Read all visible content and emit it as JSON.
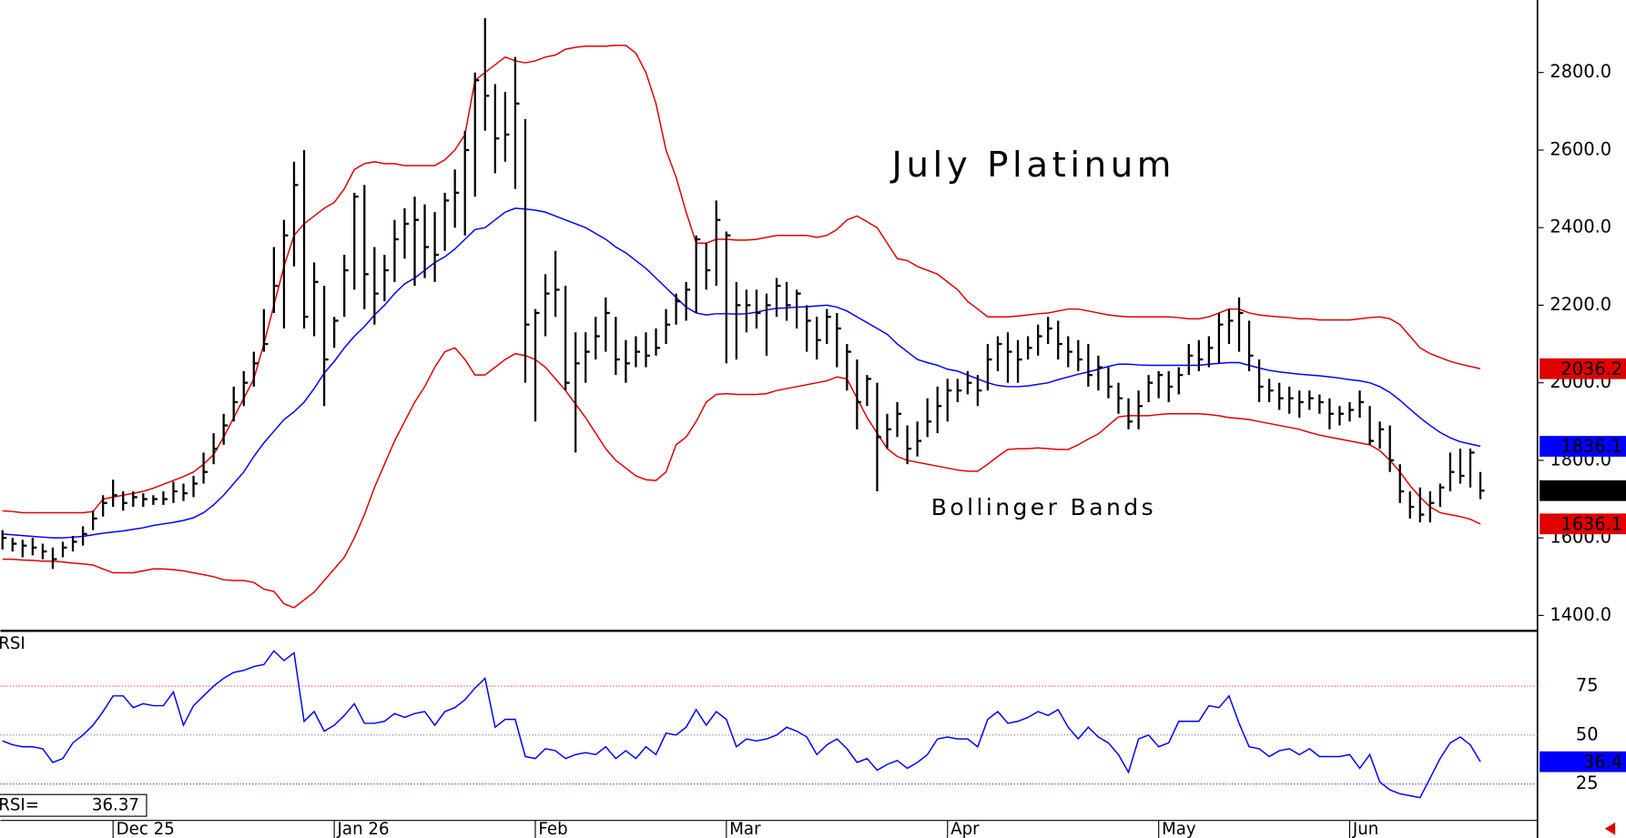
{
  "chart_data": [
    {
      "type": "ohlc",
      "title": "July Platinum",
      "annotation": "Bollinger Bands",
      "annotation_color": "#e00000",
      "color": "#000000",
      "categories": [
        null,
        null,
        null,
        null,
        null,
        null,
        null,
        null,
        null,
        null,
        null,
        "Dec 25",
        null,
        null,
        null,
        null,
        null,
        null,
        null,
        null,
        null,
        null,
        null,
        null,
        null,
        null,
        null,
        null,
        null,
        null,
        null,
        null,
        null,
        "Jan 26",
        null,
        null,
        null,
        null,
        null,
        null,
        null,
        null,
        null,
        null,
        null,
        null,
        null,
        null,
        null,
        null,
        null,
        null,
        null,
        "Feb",
        null,
        null,
        null,
        null,
        null,
        null,
        null,
        null,
        null,
        null,
        null,
        null,
        null,
        null,
        null,
        null,
        null,
        null,
        "Mar",
        null,
        null,
        null,
        null,
        null,
        null,
        null,
        null,
        null,
        null,
        null,
        null,
        null,
        null,
        null,
        null,
        null,
        null,
        null,
        null,
        null,
        "Apr",
        null,
        null,
        null,
        null,
        null,
        null,
        null,
        null,
        null,
        null,
        null,
        null,
        null,
        null,
        null,
        null,
        null,
        null,
        null,
        null,
        "May",
        null,
        null,
        null,
        null,
        null,
        null,
        null,
        null,
        null,
        null,
        null,
        null,
        null,
        null,
        null,
        null,
        null,
        null,
        "Jun",
        null,
        null,
        null,
        null,
        null,
        null,
        null,
        null,
        null,
        null,
        null,
        null,
        null
      ],
      "high": [
        1620,
        1600,
        1595,
        1600,
        1585,
        1575,
        1590,
        1605,
        1630,
        1670,
        1710,
        1750,
        1720,
        1720,
        1715,
        1710,
        1720,
        1745,
        1740,
        1760,
        1820,
        1870,
        1920,
        1990,
        2030,
        2080,
        2190,
        2350,
        2420,
        2570,
        2600,
        2310,
        2250,
        2170,
        2330,
        2490,
        2510,
        2350,
        2330,
        2420,
        2450,
        2480,
        2460,
        2440,
        2490,
        2550,
        2650,
        2800,
        2940,
        2770,
        2750,
        2840,
        2680,
        2190,
        2280,
        2340,
        2250,
        2130,
        2130,
        2170,
        2220,
        2170,
        2110,
        2120,
        2130,
        2140,
        2190,
        2230,
        2260,
        2380,
        2360,
        2470,
        2390,
        2260,
        2240,
        2240,
        2230,
        2270,
        2260,
        2240,
        2200,
        2170,
        2190,
        2180,
        2100,
        2060,
        2020,
        2000,
        1920,
        1950,
        1890,
        1900,
        1960,
        1990,
        2010,
        2010,
        2030,
        2020,
        2100,
        2120,
        2130,
        2110,
        2120,
        2150,
        2170,
        2160,
        2120,
        2110,
        2100,
        2070,
        2040,
        2000,
        1960,
        1980,
        2020,
        2030,
        2030,
        2040,
        2100,
        2110,
        2120,
        2180,
        2190,
        2220,
        2160,
        2060,
        2010,
        2000,
        1990,
        1980,
        1980,
        1970,
        1960,
        1940,
        1950,
        1980,
        1940,
        1900,
        1890,
        1790,
        1720,
        1730,
        1720,
        1740,
        1820,
        1830,
        1830,
        1770
      ],
      "low": [
        1570,
        1565,
        1550,
        1555,
        1545,
        1520,
        1550,
        1565,
        1580,
        1620,
        1655,
        1680,
        1670,
        1680,
        1680,
        1685,
        1685,
        1690,
        1695,
        1705,
        1740,
        1790,
        1840,
        1900,
        1940,
        1990,
        2080,
        2180,
        2140,
        2300,
        2140,
        2120,
        1940,
        2090,
        2170,
        2240,
        2190,
        2150,
        2210,
        2260,
        2320,
        2250,
        2270,
        2260,
        2340,
        2400,
        2380,
        2480,
        2650,
        2540,
        2570,
        2500,
        2000,
        1900,
        2120,
        2170,
        1980,
        1820,
        2000,
        2060,
        2080,
        2020,
        2000,
        2040,
        2040,
        2070,
        2100,
        2150,
        2160,
        2180,
        2240,
        2250,
        2050,
        2060,
        2130,
        2140,
        2070,
        2170,
        2160,
        2140,
        2080,
        2060,
        2100,
        2040,
        1980,
        1880,
        1940,
        1720,
        1830,
        1860,
        1790,
        1810,
        1860,
        1870,
        1900,
        1950,
        1970,
        1940,
        1980,
        2030,
        2000,
        2000,
        2060,
        2070,
        2100,
        2060,
        2040,
        2030,
        1990,
        1980,
        1960,
        1920,
        1880,
        1880,
        1950,
        1960,
        1950,
        1970,
        2020,
        2030,
        2040,
        2050,
        2100,
        2080,
        2030,
        1950,
        1950,
        1930,
        1920,
        1910,
        1930,
        1920,
        1880,
        1890,
        1900,
        1910,
        1840,
        1830,
        1770,
        1690,
        1650,
        1640,
        1640,
        1680,
        1720,
        1740,
        1730,
        1700
      ],
      "close": [
        1600,
        1585,
        1580,
        1575,
        1565,
        1545,
        1575,
        1590,
        1610,
        1650,
        1690,
        1710,
        1690,
        1705,
        1700,
        1700,
        1700,
        1720,
        1715,
        1740,
        1770,
        1830,
        1890,
        1950,
        2000,
        2050,
        2100,
        2250,
        2380,
        2510,
        2170,
        2260,
        2060,
        2160,
        2290,
        2480,
        2280,
        2230,
        2290,
        2370,
        2410,
        2420,
        2350,
        2330,
        2470,
        2490,
        2600,
        2780,
        2740,
        2630,
        2640,
        2720,
        2150,
        2180,
        2230,
        2240,
        2000,
        2050,
        2080,
        2120,
        2180,
        2060,
        2050,
        2080,
        2070,
        2090,
        2150,
        2210,
        2240,
        2370,
        2290,
        2420,
        2380,
        2200,
        2200,
        2180,
        2200,
        2250,
        2200,
        2230,
        2160,
        2110,
        2170,
        2140,
        2080,
        1950,
        2010,
        1860,
        1880,
        1920,
        1830,
        1850,
        1900,
        1940,
        1980,
        1980,
        2000,
        1980,
        2060,
        2100,
        2080,
        2060,
        2090,
        2120,
        2140,
        2100,
        2080,
        2060,
        2020,
        2040,
        1990,
        1960,
        1900,
        1940,
        2000,
        2020,
        1990,
        2020,
        2070,
        2060,
        2090,
        2150,
        2160,
        2180,
        2070,
        1990,
        1980,
        1960,
        1960,
        1950,
        1960,
        1950,
        1920,
        1920,
        1930,
        1950,
        1850,
        1880,
        1800,
        1720,
        1680,
        1660,
        1690,
        1730,
        1770,
        1760,
        1820,
        1721.8
      ],
      "series": [
        {
          "color": "#e00000",
          "values": [
            1670,
            1668,
            1665,
            1665,
            1665,
            1665,
            1665,
            1665,
            1665,
            1668,
            1700,
            1705,
            1710,
            1715,
            1720,
            1728,
            1738,
            1748,
            1758,
            1770,
            1790,
            1815,
            1860,
            1910,
            1960,
            2010,
            2100,
            2200,
            2300,
            2380,
            2410,
            2430,
            2450,
            2465,
            2500,
            2550,
            2565,
            2570,
            2565,
            2565,
            2560,
            2560,
            2560,
            2560,
            2575,
            2600,
            2640,
            2780,
            2800,
            2820,
            2840,
            2830,
            2825,
            2830,
            2840,
            2845,
            2860,
            2865,
            2868,
            2868,
            2868,
            2870,
            2870,
            2850,
            2800,
            2720,
            2600,
            2530,
            2440,
            2360,
            2360,
            2370,
            2370,
            2368,
            2368,
            2370,
            2375,
            2380,
            2380,
            2380,
            2380,
            2375,
            2380,
            2395,
            2420,
            2430,
            2415,
            2400,
            2360,
            2320,
            2315,
            2300,
            2290,
            2280,
            2260,
            2240,
            2210,
            2190,
            2170,
            2170,
            2170,
            2172,
            2175,
            2178,
            2180,
            2185,
            2190,
            2190,
            2185,
            2180,
            2175,
            2172,
            2170,
            2170,
            2170,
            2170,
            2170,
            2168,
            2165,
            2165,
            2170,
            2180,
            2190,
            2190,
            2180,
            2175,
            2172,
            2170,
            2168,
            2165,
            2165,
            2162,
            2162,
            2162,
            2162,
            2165,
            2168,
            2170,
            2165,
            2150,
            2120,
            2090,
            2075,
            2065,
            2055,
            2048,
            2042,
            2036.2
          ]
        },
        {
          "color": "#0000ff",
          "values": [
            1610,
            1608,
            1606,
            1604,
            1602,
            1600,
            1600,
            1602,
            1604,
            1608,
            1612,
            1615,
            1618,
            1622,
            1626,
            1632,
            1636,
            1640,
            1645,
            1652,
            1665,
            1685,
            1710,
            1740,
            1770,
            1810,
            1845,
            1875,
            1905,
            1925,
            1950,
            1985,
            2025,
            2055,
            2090,
            2120,
            2145,
            2175,
            2200,
            2230,
            2255,
            2270,
            2290,
            2310,
            2325,
            2345,
            2370,
            2395,
            2400,
            2420,
            2440,
            2450,
            2448,
            2445,
            2440,
            2430,
            2420,
            2410,
            2400,
            2385,
            2370,
            2350,
            2335,
            2315,
            2295,
            2270,
            2245,
            2220,
            2195,
            2180,
            2175,
            2178,
            2178,
            2177,
            2178,
            2182,
            2188,
            2192,
            2193,
            2195,
            2196,
            2198,
            2200,
            2195,
            2185,
            2170,
            2155,
            2140,
            2125,
            2100,
            2080,
            2060,
            2052,
            2045,
            2035,
            2030,
            2020,
            2010,
            2000,
            1993,
            1990,
            1990,
            1992,
            1996,
            2000,
            2008,
            2015,
            2022,
            2028,
            2035,
            2042,
            2048,
            2048,
            2046,
            2045,
            2045,
            2045,
            2045,
            2045,
            2045,
            2048,
            2050,
            2052,
            2052,
            2045,
            2038,
            2032,
            2028,
            2025,
            2022,
            2020,
            2018,
            2015,
            2012,
            2008,
            2005,
            2000,
            1990,
            1975,
            1955,
            1932,
            1910,
            1890,
            1872,
            1858,
            1848,
            1842,
            1836.1
          ]
        },
        {
          "color": "#e00000",
          "values": [
            1545,
            1545,
            1543,
            1542,
            1540,
            1540,
            1538,
            1535,
            1533,
            1530,
            1520,
            1510,
            1510,
            1510,
            1515,
            1520,
            1520,
            1518,
            1515,
            1510,
            1505,
            1500,
            1492,
            1490,
            1490,
            1485,
            1468,
            1462,
            1430,
            1420,
            1440,
            1460,
            1490,
            1520,
            1550,
            1600,
            1660,
            1730,
            1790,
            1850,
            1900,
            1950,
            1990,
            2040,
            2080,
            2090,
            2060,
            2020,
            2020,
            2040,
            2060,
            2075,
            2070,
            2060,
            2040,
            2010,
            1980,
            1945,
            1910,
            1870,
            1830,
            1800,
            1780,
            1760,
            1750,
            1748,
            1770,
            1840,
            1860,
            1900,
            1950,
            1970,
            1972,
            1970,
            1970,
            1970,
            1972,
            1980,
            1985,
            1990,
            1995,
            2000,
            2005,
            2015,
            2010,
            1960,
            1910,
            1870,
            1830,
            1810,
            1800,
            1795,
            1790,
            1785,
            1780,
            1775,
            1772,
            1772,
            1790,
            1810,
            1828,
            1830,
            1830,
            1832,
            1830,
            1828,
            1828,
            1840,
            1855,
            1868,
            1890,
            1912,
            1915,
            1915,
            1915,
            1918,
            1920,
            1920,
            1920,
            1920,
            1918,
            1915,
            1910,
            1908,
            1905,
            1900,
            1895,
            1890,
            1885,
            1880,
            1872,
            1865,
            1860,
            1855,
            1850,
            1845,
            1840,
            1825,
            1800,
            1770,
            1735,
            1705,
            1680,
            1665,
            1660,
            1655,
            1648,
            1636.1
          ]
        }
      ],
      "ylim": [
        1363,
        2987
      ],
      "yticks": [
        {
          "value": 1400,
          "label": "1400.0"
        },
        {
          "value": 1600,
          "label": "1600.0"
        },
        {
          "value": 1800,
          "label": "1800.0"
        },
        {
          "value": 2000,
          "label": "2000.0"
        },
        {
          "value": 2200,
          "label": "2200.0"
        },
        {
          "value": 2400,
          "label": "2400.0"
        },
        {
          "value": 2600,
          "label": "2600.0"
        },
        {
          "value": 2800,
          "label": "2800.0"
        }
      ]
    },
    {
      "type": "line",
      "title": "RSI",
      "readout_label": "RSI=",
      "color": "#0000ff",
      "last_value_label": "36.4",
      "values": [
        47,
        45,
        44,
        44,
        43,
        36,
        38,
        46,
        50,
        55,
        62,
        70,
        70,
        64,
        66,
        65,
        65,
        72,
        55,
        65,
        70,
        75,
        79,
        82,
        83,
        85,
        86,
        93,
        88,
        92,
        57,
        62,
        52,
        55,
        60,
        66,
        56,
        56,
        57,
        61,
        59,
        61,
        62,
        55,
        62,
        64,
        68,
        74,
        79,
        54,
        58,
        58,
        39,
        38,
        43,
        42,
        38,
        40,
        41,
        40,
        44,
        38,
        42,
        38,
        44,
        40,
        51,
        50,
        54,
        63,
        55,
        62,
        58,
        44,
        48,
        47,
        48,
        50,
        54,
        52,
        49,
        40,
        45,
        48,
        43,
        36,
        38,
        32,
        35,
        37,
        33,
        36,
        40,
        48,
        49,
        48,
        48,
        44,
        58,
        62,
        56,
        57,
        59,
        62,
        60,
        63,
        54,
        48,
        54,
        49,
        46,
        40,
        31,
        48,
        50,
        44,
        46,
        57,
        57,
        57,
        65,
        64,
        70,
        56,
        44,
        43,
        39,
        42,
        43,
        40,
        43,
        39,
        39,
        39,
        40,
        33,
        40,
        26,
        22,
        20,
        19,
        18,
        28,
        38,
        46,
        49,
        45,
        36.37
      ],
      "ylim": [
        6.4,
        102.7
      ],
      "yticks": [
        25,
        50,
        75
      ],
      "guide_colors": [
        "#3030ff",
        "#777777",
        "#ff3030"
      ]
    }
  ]
}
